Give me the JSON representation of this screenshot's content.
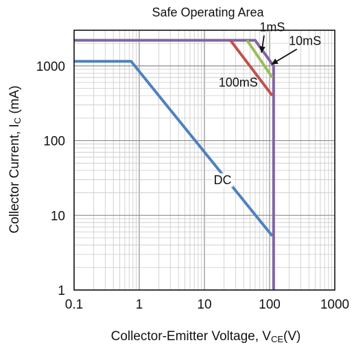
{
  "chart_data": {
    "type": "line",
    "title": "Safe Operating Area",
    "xlabel": {
      "main": "Collector-Emitter Voltage, V",
      "sub": "CE",
      "suffix": "(V)"
    },
    "ylabel": {
      "main": "Collector Current, I",
      "sub": "C",
      "suffix": " (mA)"
    },
    "x_scale": "log",
    "y_scale": "log",
    "xlim": [
      0.1,
      1000
    ],
    "ylim": [
      1,
      3000
    ],
    "x_ticks": [
      0.1,
      1,
      10,
      100,
      1000
    ],
    "x_tick_labels": [
      "0.1",
      "1",
      "10",
      "100",
      "1000"
    ],
    "y_ticks": [
      1,
      10,
      100,
      1000
    ],
    "y_tick_labels": [
      "1",
      "10",
      "100",
      "1000"
    ],
    "grid": true,
    "series": [
      {
        "name": "1mS",
        "color": "#8064a2",
        "x": [
          0.1,
          60,
          115,
          115
        ],
        "y": [
          2200,
          2200,
          1000,
          1
        ]
      },
      {
        "name": "10mS",
        "color": "#9bbb59",
        "x": [
          45,
          110
        ],
        "y": [
          2200,
          700
        ]
      },
      {
        "name": "100mS",
        "color": "#c0504d",
        "x": [
          25,
          110
        ],
        "y": [
          2200,
          400
        ]
      },
      {
        "name": "DC",
        "color": "#4f81bd",
        "x": [
          0.1,
          0.75,
          110
        ],
        "y": [
          1150,
          1150,
          5.3
        ]
      }
    ],
    "annotations": [
      {
        "text": "1mS",
        "label_x": 110,
        "label_y": 2900,
        "arrow_to": [
          75,
          1500
        ]
      },
      {
        "text": "10mS",
        "label_x": 350,
        "label_y": 1900,
        "arrow_to": [
          107,
          1050
        ]
      },
      {
        "text": "100mS",
        "label_x": 33,
        "label_y": 530,
        "arrow_to": null
      },
      {
        "text": "DC",
        "label_x": 19,
        "label_y": 26,
        "arrow_to": null
      }
    ]
  }
}
